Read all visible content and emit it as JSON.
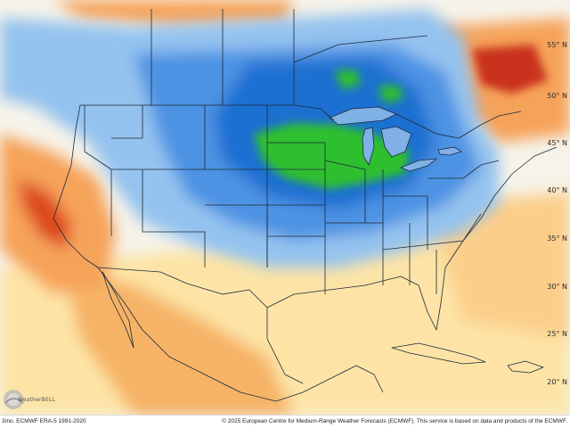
{
  "map": {
    "latitude_labels": [
      "55° N",
      "50° N",
      "45° N",
      "40° N",
      "35° N",
      "30° N",
      "25° N",
      "20° N"
    ],
    "colors": {
      "strong_cold": "#1f6fd1",
      "cold": "#4d93e3",
      "cool": "#94c3ef",
      "neutral": "#ecf3fb",
      "warm": "#fde4a6",
      "hot": "#f6a35a",
      "very_hot": "#dd4a1e",
      "extreme_cold_green": "#2fbf2f"
    }
  },
  "logo": {
    "text": "WeatherBELL"
  },
  "footer": {
    "left_text": "3mo. ECMWF ERA-5 1991-2020",
    "right_text": "© 2025 European Centre for Medium-Range Weather Forecasts (ECMWF). This service is based on data and products of the ECMWF."
  }
}
